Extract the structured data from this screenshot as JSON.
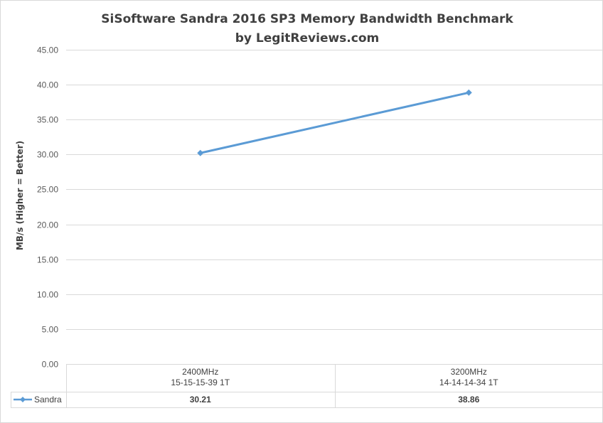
{
  "chart_data": {
    "type": "line",
    "title": "SiSoftware Sandra 2016 SP3 Memory Bandwidth Benchmark",
    "subtitle": "by LegitReviews.com",
    "xlabel": "",
    "ylabel": "MB/s (Higher = Better)",
    "ylim": [
      0,
      45
    ],
    "y_ticks": [
      "0.00",
      "5.00",
      "10.00",
      "15.00",
      "20.00",
      "25.00",
      "30.00",
      "35.00",
      "40.00",
      "45.00"
    ],
    "grid": true,
    "legend": "data-table",
    "categories": [
      [
        "2400MHz",
        "15-15-15-39 1T"
      ],
      [
        "3200MHz",
        "14-14-14-34 1T"
      ]
    ],
    "series": [
      {
        "name": "Sandra",
        "values": [
          30.21,
          38.86
        ],
        "value_labels": [
          "30.21",
          "38.86"
        ],
        "color": "#5B9BD5"
      }
    ]
  }
}
